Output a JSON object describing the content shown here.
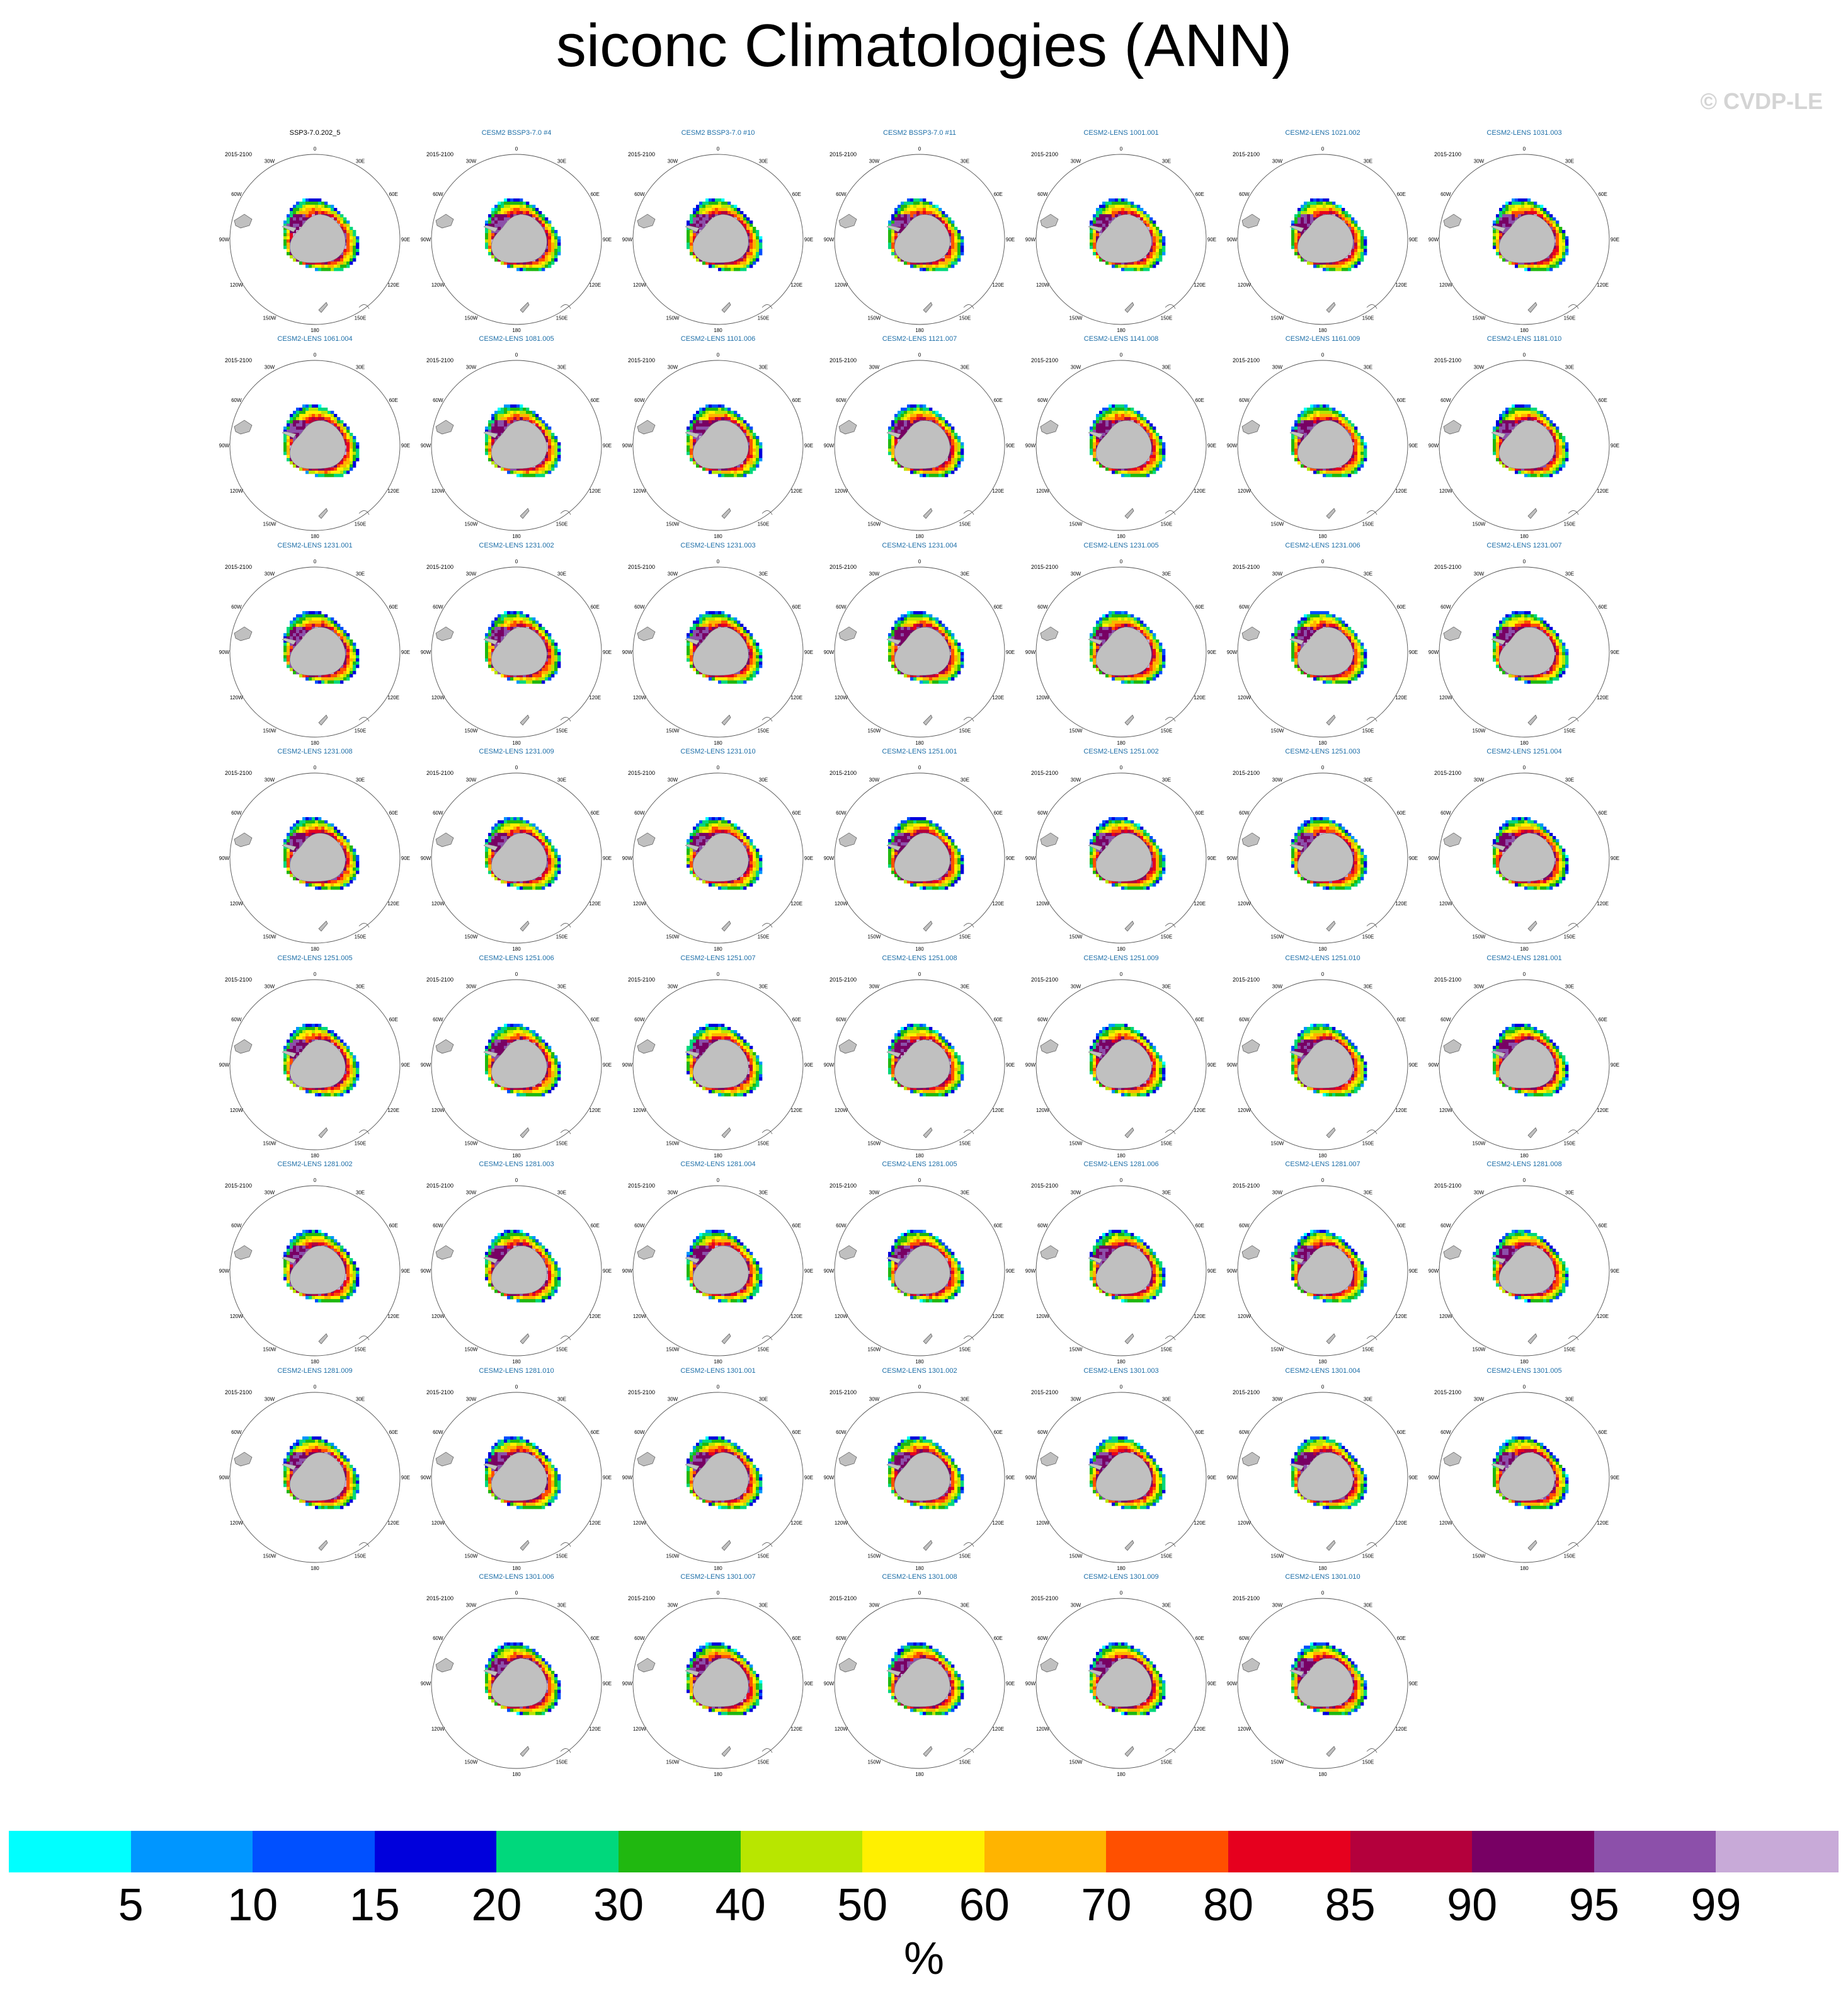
{
  "title": "siconc Climatologies (ANN)",
  "watermark": "© CVDP-LE",
  "chart_data": {
    "type": "heatmap",
    "variable": "siconc",
    "season": "ANN",
    "projection": "south-polar-stereographic",
    "period": "2015-2100",
    "lon_labels": [
      "0",
      "30E",
      "60E",
      "90E",
      "120E",
      "150E",
      "180",
      "150W",
      "120W",
      "90W",
      "60W",
      "30W"
    ],
    "panels": [
      {
        "title": "SSP3-7.0.202_5"
      },
      {
        "title": "CESM2 BSSP3-7.0 #4"
      },
      {
        "title": "CESM2 BSSP3-7.0 #10"
      },
      {
        "title": "CESM2 BSSP3-7.0 #11"
      },
      {
        "title": "CESM2-LENS 1001.001"
      },
      {
        "title": "CESM2-LENS 1021.002"
      },
      {
        "title": "CESM2-LENS 1031.003"
      },
      {
        "title": "CESM2-LENS 1061.004"
      },
      {
        "title": "CESM2-LENS 1081.005"
      },
      {
        "title": "CESM2-LENS 1101.006"
      },
      {
        "title": "CESM2-LENS 1121.007"
      },
      {
        "title": "CESM2-LENS 1141.008"
      },
      {
        "title": "CESM2-LENS 1161.009"
      },
      {
        "title": "CESM2-LENS 1181.010"
      },
      {
        "title": "CESM2-LENS 1231.001"
      },
      {
        "title": "CESM2-LENS 1231.002"
      },
      {
        "title": "CESM2-LENS 1231.003"
      },
      {
        "title": "CESM2-LENS 1231.004"
      },
      {
        "title": "CESM2-LENS 1231.005"
      },
      {
        "title": "CESM2-LENS 1231.006"
      },
      {
        "title": "CESM2-LENS 1231.007"
      },
      {
        "title": "CESM2-LENS 1231.008"
      },
      {
        "title": "CESM2-LENS 1231.009"
      },
      {
        "title": "CESM2-LENS 1231.010"
      },
      {
        "title": "CESM2-LENS 1251.001"
      },
      {
        "title": "CESM2-LENS 1251.002"
      },
      {
        "title": "CESM2-LENS 1251.003"
      },
      {
        "title": "CESM2-LENS 1251.004"
      },
      {
        "title": "CESM2-LENS 1251.005"
      },
      {
        "title": "CESM2-LENS 1251.006"
      },
      {
        "title": "CESM2-LENS 1251.007"
      },
      {
        "title": "CESM2-LENS 1251.008"
      },
      {
        "title": "CESM2-LENS 1251.009"
      },
      {
        "title": "CESM2-LENS 1251.010"
      },
      {
        "title": "CESM2-LENS 1281.001"
      },
      {
        "title": "CESM2-LENS 1281.002"
      },
      {
        "title": "CESM2-LENS 1281.003"
      },
      {
        "title": "CESM2-LENS 1281.004"
      },
      {
        "title": "CESM2-LENS 1281.005"
      },
      {
        "title": "CESM2-LENS 1281.006"
      },
      {
        "title": "CESM2-LENS 1281.007"
      },
      {
        "title": "CESM2-LENS 1281.008"
      },
      {
        "title": "CESM2-LENS 1281.009"
      },
      {
        "title": "CESM2-LENS 1281.010"
      },
      {
        "title": "CESM2-LENS 1301.001"
      },
      {
        "title": "CESM2-LENS 1301.002"
      },
      {
        "title": "CESM2-LENS 1301.003"
      },
      {
        "title": "CESM2-LENS 1301.004"
      },
      {
        "title": "CESM2-LENS 1301.005"
      },
      {
        "title": "CESM2-LENS 1301.006"
      },
      {
        "title": "CESM2-LENS 1301.007"
      },
      {
        "title": "CESM2-LENS 1301.008"
      },
      {
        "title": "CESM2-LENS 1301.009"
      },
      {
        "title": "CESM2-LENS 1301.010"
      }
    ],
    "colorbar": {
      "unit": "%",
      "tick_labels": [
        "5",
        "10",
        "15",
        "20",
        "30",
        "40",
        "50",
        "60",
        "70",
        "80",
        "85",
        "90",
        "95",
        "99"
      ],
      "colors": [
        "#00ffff",
        "#0096ff",
        "#0050ff",
        "#0000dc",
        "#00d87c",
        "#20b810",
        "#b8e600",
        "#fff000",
        "#ffb400",
        "#ff5000",
        "#e6001e",
        "#b4003c",
        "#780064",
        "#8c50aa",
        "#c8aad8"
      ]
    },
    "land_color": "#c0c0c0"
  }
}
